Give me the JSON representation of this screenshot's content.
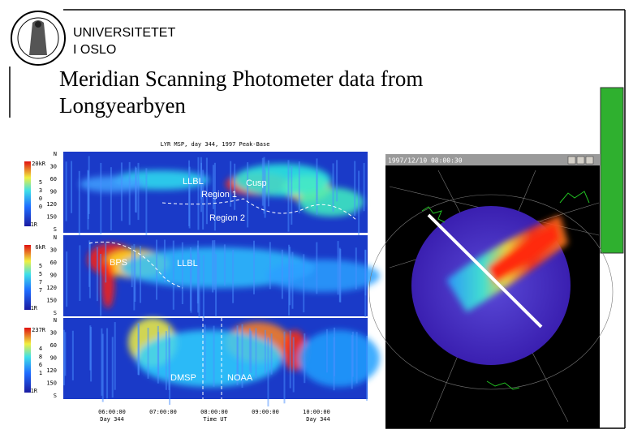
{
  "header": {
    "lines": [
      "UNIVERSITETET",
      "I OSLO"
    ]
  },
  "title": [
    "Meridian Scanning Photometer data from",
    "Longyearbyen"
  ],
  "left_figure": {
    "caption": "LYR MSP, day 344, 1997 Peak-Base",
    "panels": [
      {
        "max": "20kR",
        "min": "1R",
        "digits": [
          "5",
          "3",
          "0",
          "0"
        ],
        "labels": [
          "LLBL",
          "Cusp",
          "Region 1",
          "Region 2"
        ]
      },
      {
        "max": "6kR",
        "min": "1R",
        "digits": [
          "5",
          "5",
          "7",
          "7"
        ],
        "labels": [
          "BPS",
          "LLBL"
        ]
      },
      {
        "max": "237R",
        "min": "1R",
        "digits": [
          "4",
          "8",
          "6",
          "1"
        ],
        "labels": [
          "DMSP",
          "NOAA"
        ]
      }
    ],
    "yticks": [
      "N",
      "30",
      "60",
      "90",
      "120",
      "150",
      "S"
    ],
    "times": [
      "06:00:00",
      "07:00:00",
      "08:00:00",
      "09:00:00",
      "10:00:00"
    ],
    "time_notes": [
      "Day 344",
      "Time UT",
      "Day 344"
    ]
  },
  "right_figure": {
    "window_title": "1997/12/10 08:00:30"
  }
}
